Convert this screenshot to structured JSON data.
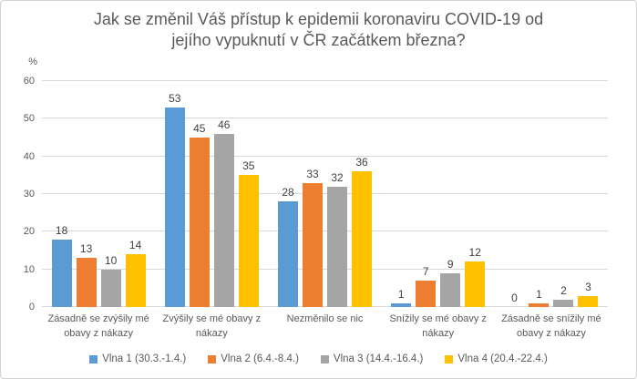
{
  "title_lines": [
    "Jak se změnil Váš přístup k epidemii koronaviru COVID-19 od",
    "jejího vypuknutí v ČR začátkem března?"
  ],
  "y_axis": {
    "unit_label": "%",
    "ticks": [
      0,
      10,
      20,
      30,
      40,
      50,
      60
    ]
  },
  "chart_data": {
    "type": "bar",
    "title": "Jak se změnil Váš přístup k epidemii koronaviru COVID-19 od jejího vypuknutí v ČR začátkem března?",
    "xlabel": "",
    "ylabel": "%",
    "ylim": [
      0,
      60
    ],
    "grid": true,
    "legend_position": "bottom",
    "categories": [
      "Zásadně se zvýšily mé obavy z nákazy",
      "Zvýšily se mé obavy z nákazy",
      "Nezměnilo se nic",
      "Snížily se mé obavy z nákazy",
      "Zásadně se snížily mé obavy z nákazy"
    ],
    "series": [
      {
        "name": "Vlna 1 (30.3.-1.4.)",
        "color": "#5B9BD5",
        "values": [
          18,
          53,
          28,
          1,
          0
        ]
      },
      {
        "name": "Vlna 2 (6.4.-8.4.)",
        "color": "#ED7D31",
        "values": [
          13,
          45,
          33,
          7,
          1
        ]
      },
      {
        "name": "Vlna 3 (14.4.-16.4.)",
        "color": "#A5A5A5",
        "values": [
          10,
          46,
          32,
          9,
          2
        ]
      },
      {
        "name": "Vlna 4 (20.4.-22.4.)",
        "color": "#FFC000",
        "values": [
          14,
          35,
          36,
          12,
          3
        ]
      }
    ]
  },
  "colors": {
    "text": "#595959",
    "data_label": "#404040",
    "gridline": "#D9D9D9",
    "chart_border": "#D2D2D2",
    "background": "#FFFFFF"
  }
}
